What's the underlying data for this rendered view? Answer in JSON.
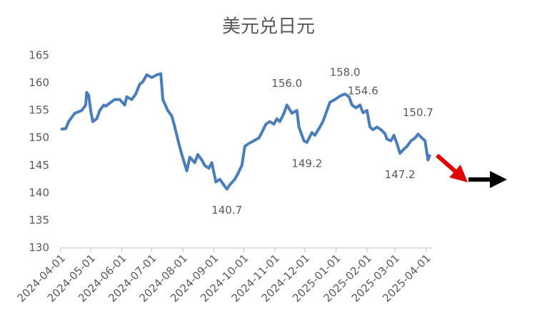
{
  "chart_data": {
    "type": "line",
    "title": "美元兑日元",
    "x": [
      "2024-04-01",
      "2024-04-06",
      "2024-04-09",
      "2024-04-15",
      "2024-04-22",
      "2024-04-26",
      "2024-04-27",
      "2024-04-29",
      "2024-05-01",
      "2024-05-03",
      "2024-05-07",
      "2024-05-10",
      "2024-05-14",
      "2024-05-16",
      "2024-05-21",
      "2024-05-25",
      "2024-05-30",
      "2024-06-04",
      "2024-06-06",
      "2024-06-11",
      "2024-06-15",
      "2024-06-19",
      "2024-06-22",
      "2024-06-26",
      "2024-07-01",
      "2024-07-06",
      "2024-07-10",
      "2024-07-12",
      "2024-07-17",
      "2024-07-21",
      "2024-07-24",
      "2024-07-28",
      "2024-07-31",
      "2024-08-05",
      "2024-08-08",
      "2024-08-13",
      "2024-08-16",
      "2024-08-20",
      "2024-08-23",
      "2024-08-27",
      "2024-08-30",
      "2024-09-03",
      "2024-09-07",
      "2024-09-10",
      "2024-09-14",
      "2024-09-17",
      "2024-09-22",
      "2024-09-25",
      "2024-09-29",
      "2024-10-02",
      "2024-10-06",
      "2024-10-11",
      "2024-10-16",
      "2024-10-19",
      "2024-10-23",
      "2024-10-27",
      "2024-10-31",
      "2024-11-03",
      "2024-11-06",
      "2024-11-10",
      "2024-11-13",
      "2024-11-18",
      "2024-11-23",
      "2024-11-25",
      "2024-11-30",
      "2024-12-03",
      "2024-12-08",
      "2024-12-11",
      "2024-12-16",
      "2024-12-19",
      "2024-12-22",
      "2024-12-26",
      "2024-12-31",
      "2025-01-04",
      "2025-01-07",
      "2025-01-10",
      "2025-01-14",
      "2025-01-17",
      "2025-01-21",
      "2025-01-25",
      "2025-01-28",
      "2025-02-01",
      "2025-02-04",
      "2025-02-07",
      "2025-02-11",
      "2025-02-15",
      "2025-02-19",
      "2025-02-21",
      "2025-02-25",
      "2025-02-28",
      "2025-03-03",
      "2025-03-06",
      "2025-03-10",
      "2025-03-13",
      "2025-03-17",
      "2025-03-21",
      "2025-03-24",
      "2025-03-28",
      "2025-03-31",
      "2025-04-03",
      "2025-04-05"
    ],
    "series": [
      {
        "color": "#4a7ebb",
        "values": [
          151.6,
          151.7,
          153,
          154.5,
          155,
          156,
          158.3,
          157.8,
          155,
          153,
          153.5,
          155,
          156,
          155.8,
          156.5,
          157,
          157,
          156,
          157.5,
          157,
          158,
          159.8,
          160.2,
          161.5,
          161,
          161.5,
          161.7,
          157,
          155,
          154,
          152,
          149,
          147,
          144,
          146.5,
          145.5,
          147,
          146,
          145,
          144.5,
          145.5,
          142,
          142.5,
          141.7,
          140.7,
          141.5,
          142.5,
          143.5,
          145,
          148.5,
          149,
          149.5,
          150,
          151,
          152.5,
          153,
          152.5,
          153.5,
          153,
          154.5,
          156,
          154.5,
          155,
          152,
          149.5,
          149.2,
          151,
          150.5,
          152,
          153,
          154.5,
          156.5,
          157,
          157.5,
          157.8,
          158,
          157.5,
          156,
          155.5,
          156,
          154.6,
          155,
          152,
          151.5,
          152,
          151.5,
          150.8,
          149.8,
          149.5,
          150.5,
          149,
          147.2,
          148,
          148.5,
          149.5,
          150,
          150.7,
          150,
          149.5,
          146,
          147
        ]
      }
    ],
    "xlim": [
      "2024-04-01",
      "2025-04-07"
    ],
    "xticks": [
      "2024-04-01",
      "2024-05-01",
      "2024-06-01",
      "2024-07-01",
      "2024-08-01",
      "2024-09-01",
      "2024-10-01",
      "2024-11-01",
      "2024-12-01",
      "2025-01-01",
      "2025-02-01",
      "2025-03-01",
      "2025-04-01"
    ],
    "ylim": [
      130,
      165
    ],
    "yticks": [
      130,
      135,
      140,
      145,
      150,
      155,
      160,
      165
    ],
    "grid": false,
    "annotations": [
      {
        "text": "140.7",
        "x": "2024-09-14",
        "y": 140.7,
        "position": "below"
      },
      {
        "text": "156.0",
        "x": "2024-11-13",
        "y": 156,
        "position": "above"
      },
      {
        "text": "149.2",
        "x": "2024-12-03",
        "y": 149.2,
        "position": "below"
      },
      {
        "text": "158.0",
        "x": "2025-01-10",
        "y": 158,
        "position": "above"
      },
      {
        "text": "154.6",
        "x": "2025-01-28",
        "y": 154.6,
        "position": "above"
      },
      {
        "text": "147.2",
        "x": "2025-03-06",
        "y": 147.2,
        "position": "below"
      },
      {
        "text": "150.7",
        "x": "2025-03-24",
        "y": 150.7,
        "position": "above"
      }
    ]
  }
}
